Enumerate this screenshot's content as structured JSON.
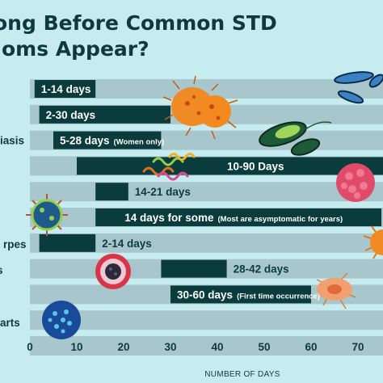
{
  "title": {
    "line1": "ong Before Common STD",
    "line2": "oms Appear?"
  },
  "chart_data": {
    "type": "bar",
    "orientation": "horizontal-range",
    "xlabel": "NUMBER OF DAYS",
    "xlim": [
      0,
      75
    ],
    "xticks": [
      0,
      10,
      20,
      30,
      40,
      50,
      60,
      70
    ],
    "row_labels": [
      {
        "row": 2,
        "text": "iasis"
      },
      {
        "row": 8,
        "text": "rpes"
      },
      {
        "row": 9,
        "text": "s"
      },
      {
        "row": 11,
        "text": "arts"
      }
    ],
    "series": [
      {
        "row": 0,
        "start": 1,
        "end": 14,
        "label": "1-14 days",
        "note": "",
        "label_pos": "inside"
      },
      {
        "row": 1,
        "start": 2,
        "end": 30,
        "label": "2-30 days",
        "note": "",
        "label_pos": "inside"
      },
      {
        "row": 2,
        "start": 5,
        "end": 28,
        "label": "5-28 days",
        "note": "(Women only)",
        "label_pos": "inside"
      },
      {
        "row": 3,
        "start": 10,
        "end": 90,
        "label": "10-90 Days",
        "note": "",
        "label_pos": "inside"
      },
      {
        "row": 4,
        "start": 14,
        "end": 21,
        "label": "14-21 days",
        "note": "",
        "label_pos": "outside"
      },
      {
        "row": 5,
        "start": 14,
        "end": 75,
        "label": "14 days for some",
        "note": "(Most are asymptomatic for years)",
        "label_pos": "inside"
      },
      {
        "row": 6,
        "start": 2,
        "end": 14,
        "label": "2-14 days",
        "note": "",
        "label_pos": "outside"
      },
      {
        "row": 7,
        "start": 28,
        "end": 42,
        "label": "28-42 days",
        "note": "",
        "label_pos": "outside"
      },
      {
        "row": 8,
        "start": 30,
        "end": 60,
        "label": "30-60 days",
        "note": "(First time occurrence)",
        "label_pos": "inside"
      }
    ],
    "colors": {
      "background": "#c6ecef",
      "row_band": "#a8c7cc",
      "bar": "#0a3c3e",
      "label_text_inside": "#ffffff",
      "label_text_outside": "#0a3c3e",
      "axis_text": "#0e3a3f"
    },
    "icons": [
      "orange-bacteria-icon",
      "blue-rod-bacteria-icon",
      "green-parasite-icon",
      "squiggly-bacteria-icon",
      "pink-virus-icon",
      "spiked-virus-icon",
      "orange-spiked-virus-icon",
      "red-cell-icon",
      "orange-amoeba-icon",
      "blue-sphere-virus-icon"
    ]
  }
}
